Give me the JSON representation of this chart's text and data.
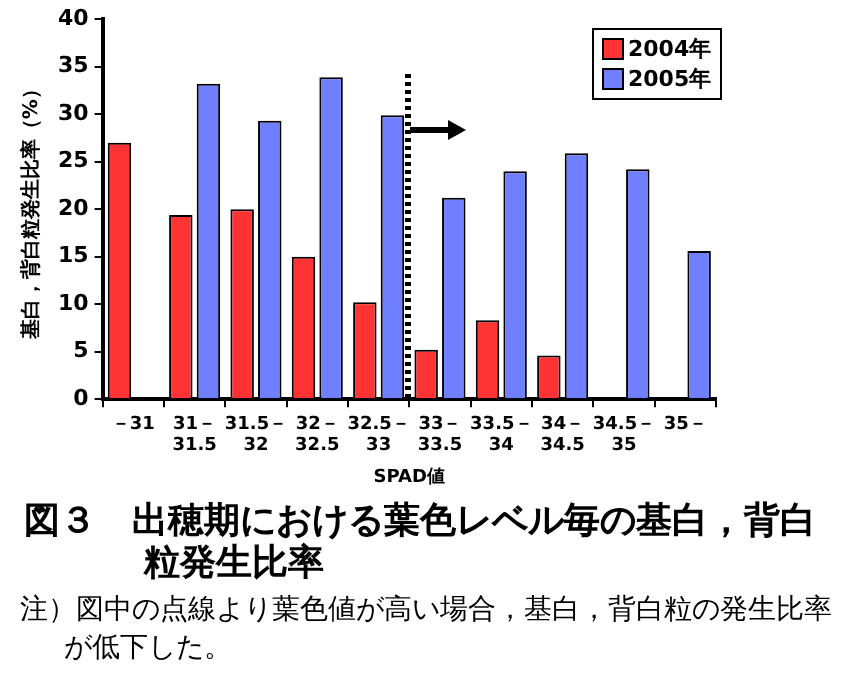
{
  "chart_data": {
    "type": "bar",
    "title": "図３　出穂期における葉色レベル毎の基白，背白粒発生比率",
    "xlabel": "SPAD値",
    "ylabel": "基白，背白粒発生比率（%）",
    "categories": [
      "－31",
      "31－31.5",
      "31.5－32",
      "32－32.5",
      "32.5－33",
      "33－33.5",
      "33.5－34",
      "34－34.5",
      "34.5－35",
      "35－"
    ],
    "series": [
      {
        "name": "2004年",
        "color": "#ff3333",
        "values": [
          27,
          19.4,
          20,
          15,
          10.2,
          5.2,
          8.3,
          4.6,
          null,
          null
        ]
      },
      {
        "name": "2005年",
        "color": "#6f7fff",
        "values": [
          null,
          33.2,
          29.3,
          33.9,
          29.9,
          21.2,
          24,
          25.9,
          24.2,
          15.6
        ]
      }
    ],
    "ylim": [
      0,
      40
    ],
    "yticks": [
      0,
      5,
      10,
      15,
      20,
      25,
      30,
      35,
      40
    ],
    "grid": false,
    "legend": "top right",
    "annotations": [
      "注）図中の点線より葉色値が高い場合，基白，背白粒の発生比率が低下した。"
    ]
  }
}
